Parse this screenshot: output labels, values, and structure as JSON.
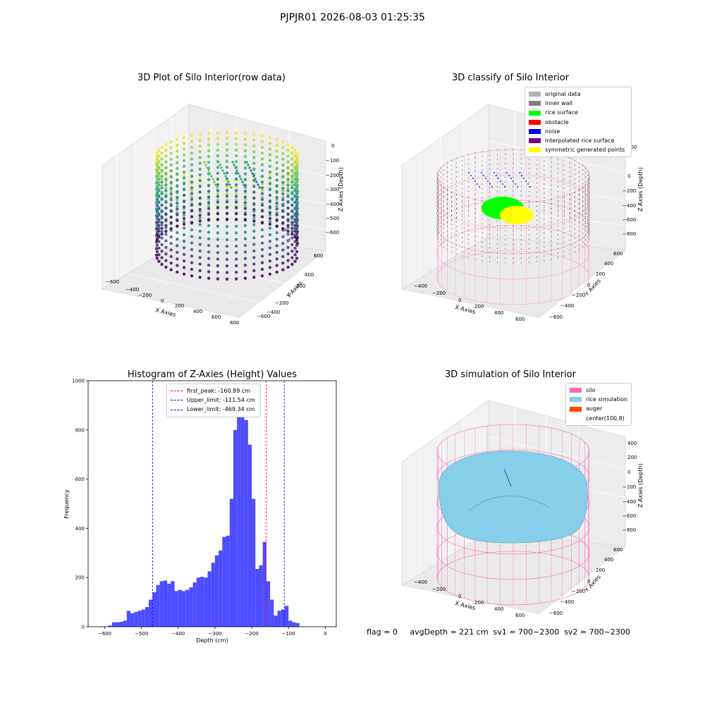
{
  "suptitle": "PJPJR01 2026-08-03 01:25:35",
  "panels": {
    "raw": {
      "title": "3D Plot of Silo Interior(row data)",
      "xlabel": "X Axies",
      "ylabel": "Y Axies",
      "zlabel": "Z Axies (Depth)",
      "xticks": [
        "−600",
        "−400",
        "−200",
        "0",
        "200",
        "400",
        "600",
        "800"
      ],
      "yticks": [
        "600",
        "400",
        "200",
        "0",
        "−200",
        "−400",
        "−600"
      ],
      "zticks": [
        "0",
        "−100",
        "−200",
        "−300",
        "−400",
        "−500",
        "−600"
      ]
    },
    "classify": {
      "title": "3D classify of Silo Interior",
      "xlabel": "X Axies",
      "ylabel": "Y Axies",
      "zlabel": "Z Axies (Depth)",
      "xticks": [
        "−400",
        "−200",
        "0",
        "200",
        "400",
        "600"
      ],
      "yticks": [
        "600",
        "400",
        "200",
        "0",
        "−200",
        "−400",
        "−600"
      ],
      "zticks": [
        "200",
        "0",
        "−200",
        "−400",
        "−600",
        "−800"
      ],
      "legend": [
        {
          "label": "original data",
          "color": "#b3b3b3"
        },
        {
          "label": "inner wall",
          "color": "#808080"
        },
        {
          "label": "rice surface",
          "color": "#00ff00"
        },
        {
          "label": "obstacle",
          "color": "#ff0000"
        },
        {
          "label": "noise",
          "color": "#0000ff"
        },
        {
          "label": "interpolated rice surface",
          "color": "#800080"
        },
        {
          "label": "symmetric generated points",
          "color": "#ffff00"
        }
      ]
    },
    "simulation": {
      "title": "3D simulation of Silo Interior",
      "xlabel": "X Axies",
      "ylabel": "Y Axies",
      "zlabel": "Z Axies (Depth)",
      "xticks": [
        "−400",
        "−200",
        "0",
        "200",
        "400",
        "600"
      ],
      "yticks": [
        "600",
        "400",
        "200",
        "0",
        "−200",
        "−400",
        "−600"
      ],
      "zticks": [
        "400",
        "200",
        "0",
        "−200",
        "−400",
        "−600",
        "−800"
      ],
      "legend": [
        {
          "label": "silo",
          "color": "#ff69b4"
        },
        {
          "label": "rice simulation",
          "color": "#87ceeb"
        },
        {
          "label": "auger",
          "color": "#ff4500"
        },
        {
          "label": "center(100,8)",
          "color": "#ffffff"
        }
      ]
    }
  },
  "status": "flag = 0     avgDepth = 221 cm  sv1 = 700~2300  sv2 = 700~2300",
  "chart_data": [
    {
      "type": "bar",
      "title": "Histogram of Z-Axies (Height) Values",
      "xlabel": "Depth (cm)",
      "ylabel": "Frequency",
      "xlim": [
        -645,
        30
      ],
      "ylim": [
        0,
        1000
      ],
      "xticks": [
        -600,
        -500,
        -400,
        -300,
        -200,
        -100,
        0
      ],
      "yticks": [
        0,
        200,
        400,
        600,
        800,
        1000
      ],
      "bar_color": "#4d4dff",
      "bin_edges": [
        -590,
        -580,
        -570,
        -560,
        -550,
        -540,
        -530,
        -520,
        -510,
        -500,
        -490,
        -480,
        -470,
        -460,
        -450,
        -440,
        -430,
        -420,
        -410,
        -400,
        -390,
        -380,
        -370,
        -360,
        -350,
        -340,
        -330,
        -320,
        -310,
        -300,
        -290,
        -280,
        -270,
        -260,
        -250,
        -240,
        -230,
        -220,
        -210,
        -200,
        -190,
        -180,
        -170,
        -160,
        -150,
        -140,
        -130,
        -120,
        -110,
        -100,
        -90,
        -80,
        -70,
        -60,
        -50,
        -40,
        -30,
        -20,
        -10,
        0
      ],
      "counts": [
        5,
        18,
        18,
        20,
        25,
        65,
        55,
        60,
        65,
        70,
        80,
        110,
        140,
        170,
        185,
        188,
        175,
        185,
        145,
        150,
        145,
        150,
        160,
        180,
        200,
        203,
        200,
        225,
        260,
        290,
        310,
        365,
        370,
        520,
        800,
        960,
        930,
        840,
        740,
        520,
        235,
        250,
        345,
        185,
        110,
        45,
        65,
        70,
        85,
        25,
        18,
        15,
        0,
        0,
        0,
        0,
        0,
        0,
        0
      ],
      "lines": [
        {
          "label": "first_peak: -160.89 cm",
          "x": -160.89,
          "color": "#ff0000"
        },
        {
          "label": "Upper_limit: -111.54 cm",
          "x": -111.54,
          "color": "#0000ff"
        },
        {
          "label": "Lower_limit: -469.34 cm",
          "x": -469.34,
          "color": "#0000ff"
        }
      ],
      "legend_position": "upper-center"
    }
  ]
}
